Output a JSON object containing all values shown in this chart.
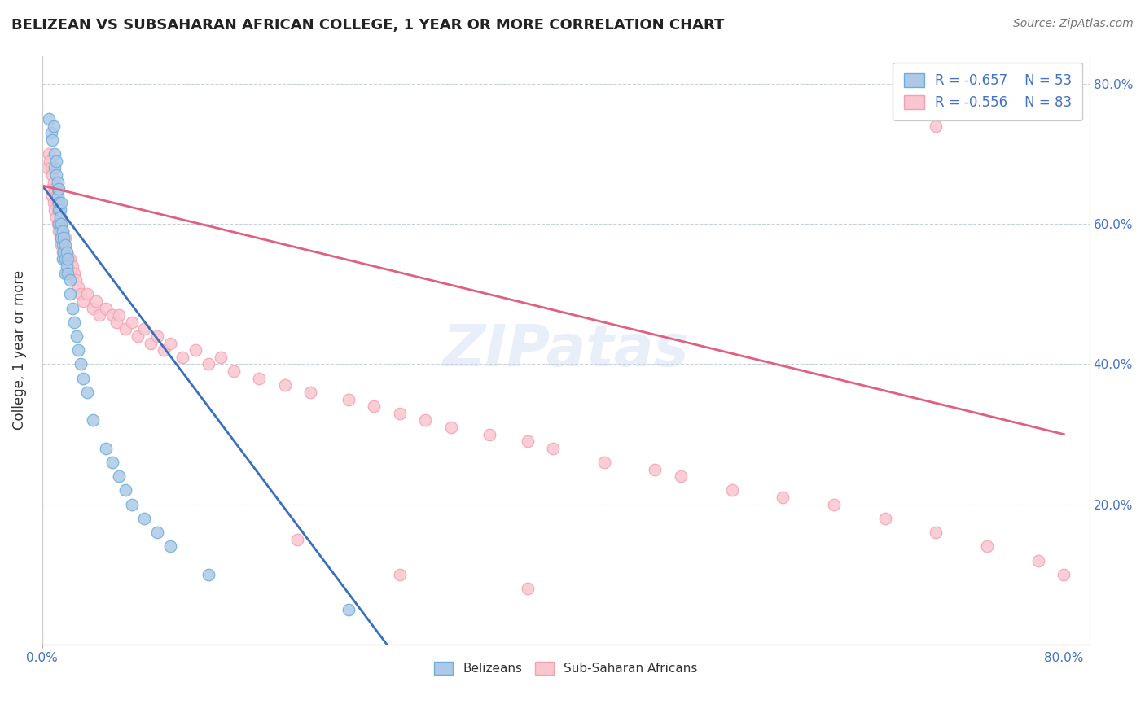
{
  "title": "BELIZEAN VS SUBSAHARAN AFRICAN COLLEGE, 1 YEAR OR MORE CORRELATION CHART",
  "source_text": "Source: ZipAtlas.com",
  "ylabel": "College, 1 year or more",
  "xlim": [
    0.0,
    0.82
  ],
  "ylim": [
    0.0,
    0.84
  ],
  "watermark": "ZIPatas",
  "legend_r1": "R = -0.657",
  "legend_n1": "N = 53",
  "legend_r2": "R = -0.556",
  "legend_n2": "N = 83",
  "belizean_color": "#6baed6",
  "belizean_face": "#aec9e8",
  "subsaharan_color": "#f4a0b0",
  "subsaharan_face": "#f9c6d0",
  "trendline_belizean": "#3a6fbe",
  "trendline_subsaharan": "#e06080",
  "belizean_scatter_x": [
    0.005,
    0.007,
    0.008,
    0.009,
    0.01,
    0.01,
    0.011,
    0.011,
    0.012,
    0.012,
    0.012,
    0.013,
    0.013,
    0.013,
    0.013,
    0.014,
    0.014,
    0.014,
    0.015,
    0.015,
    0.015,
    0.016,
    0.016,
    0.016,
    0.017,
    0.017,
    0.018,
    0.018,
    0.018,
    0.019,
    0.019,
    0.02,
    0.02,
    0.022,
    0.022,
    0.024,
    0.025,
    0.027,
    0.028,
    0.03,
    0.032,
    0.035,
    0.04,
    0.05,
    0.055,
    0.06,
    0.065,
    0.07,
    0.08,
    0.09,
    0.1,
    0.13,
    0.24
  ],
  "belizean_scatter_y": [
    0.75,
    0.73,
    0.72,
    0.74,
    0.7,
    0.68,
    0.69,
    0.67,
    0.65,
    0.66,
    0.64,
    0.63,
    0.65,
    0.62,
    0.6,
    0.62,
    0.61,
    0.59,
    0.63,
    0.6,
    0.58,
    0.59,
    0.57,
    0.55,
    0.58,
    0.56,
    0.57,
    0.55,
    0.53,
    0.56,
    0.54,
    0.55,
    0.53,
    0.52,
    0.5,
    0.48,
    0.46,
    0.44,
    0.42,
    0.4,
    0.38,
    0.36,
    0.32,
    0.28,
    0.26,
    0.24,
    0.22,
    0.2,
    0.18,
    0.16,
    0.14,
    0.1,
    0.05
  ],
  "subsaharan_scatter_x": [
    0.004,
    0.005,
    0.006,
    0.007,
    0.007,
    0.008,
    0.008,
    0.009,
    0.009,
    0.01,
    0.01,
    0.011,
    0.011,
    0.012,
    0.012,
    0.013,
    0.013,
    0.014,
    0.014,
    0.015,
    0.015,
    0.016,
    0.016,
    0.017,
    0.018,
    0.018,
    0.019,
    0.02,
    0.022,
    0.022,
    0.024,
    0.025,
    0.026,
    0.028,
    0.03,
    0.032,
    0.035,
    0.04,
    0.042,
    0.045,
    0.05,
    0.055,
    0.058,
    0.06,
    0.065,
    0.07,
    0.075,
    0.08,
    0.085,
    0.09,
    0.095,
    0.1,
    0.11,
    0.12,
    0.13,
    0.14,
    0.15,
    0.17,
    0.19,
    0.21,
    0.24,
    0.26,
    0.28,
    0.3,
    0.32,
    0.35,
    0.38,
    0.4,
    0.44,
    0.48,
    0.5,
    0.54,
    0.58,
    0.62,
    0.66,
    0.7,
    0.74,
    0.78,
    0.8,
    0.7,
    0.2,
    0.28,
    0.38
  ],
  "subsaharan_scatter_y": [
    0.68,
    0.7,
    0.69,
    0.68,
    0.65,
    0.67,
    0.64,
    0.66,
    0.63,
    0.65,
    0.62,
    0.64,
    0.61,
    0.63,
    0.6,
    0.62,
    0.59,
    0.61,
    0.58,
    0.6,
    0.57,
    0.59,
    0.56,
    0.57,
    0.58,
    0.55,
    0.56,
    0.54,
    0.55,
    0.53,
    0.54,
    0.53,
    0.52,
    0.51,
    0.5,
    0.49,
    0.5,
    0.48,
    0.49,
    0.47,
    0.48,
    0.47,
    0.46,
    0.47,
    0.45,
    0.46,
    0.44,
    0.45,
    0.43,
    0.44,
    0.42,
    0.43,
    0.41,
    0.42,
    0.4,
    0.41,
    0.39,
    0.38,
    0.37,
    0.36,
    0.35,
    0.34,
    0.33,
    0.32,
    0.31,
    0.3,
    0.29,
    0.28,
    0.26,
    0.25,
    0.24,
    0.22,
    0.21,
    0.2,
    0.18,
    0.16,
    0.14,
    0.12,
    0.1,
    0.74,
    0.15,
    0.1,
    0.08
  ],
  "belizean_trend_x0": 0.0,
  "belizean_trend_y0": 0.655,
  "belizean_trend_x1": 0.27,
  "belizean_trend_y1": 0.0,
  "subsaharan_trend_x0": 0.0,
  "subsaharan_trend_y0": 0.655,
  "subsaharan_trend_x1": 0.8,
  "subsaharan_trend_y1": 0.3
}
